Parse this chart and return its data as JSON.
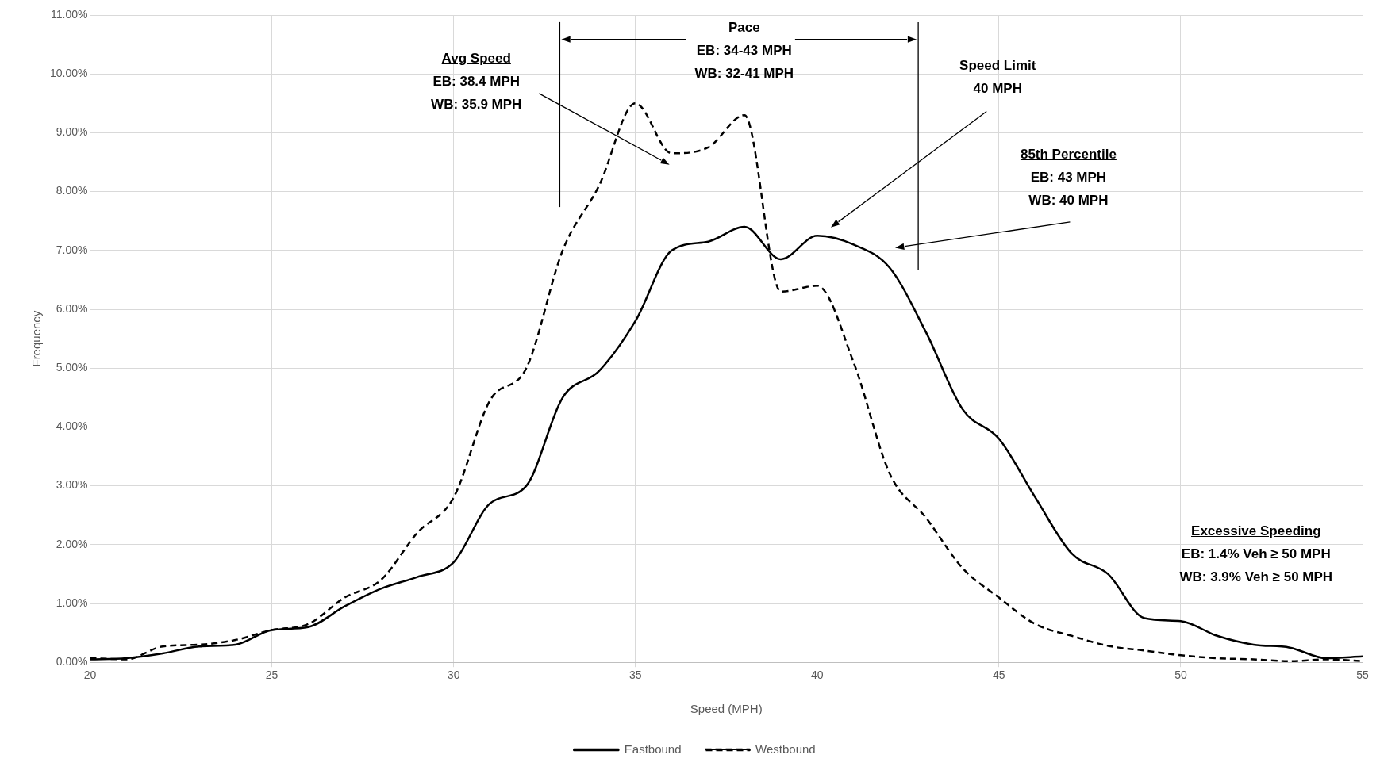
{
  "chart_data": {
    "type": "line",
    "xlabel": "Speed (MPH)",
    "ylabel": "Frequency",
    "x": [
      20,
      21,
      22,
      23,
      24,
      25,
      26,
      27,
      28,
      29,
      30,
      31,
      32,
      33,
      34,
      35,
      36,
      37,
      38,
      39,
      40,
      41,
      42,
      43,
      44,
      45,
      46,
      47,
      48,
      49,
      50,
      51,
      52,
      53,
      54,
      55
    ],
    "series": [
      {
        "name": "Eastbound",
        "color": "#000000",
        "line_style": "solid",
        "values": [
          0.05,
          0.07,
          0.15,
          0.27,
          0.3,
          0.55,
          0.6,
          0.95,
          1.25,
          1.45,
          1.7,
          2.7,
          3.0,
          4.5,
          4.95,
          5.8,
          7.0,
          7.15,
          7.4,
          6.85,
          7.25,
          7.1,
          6.7,
          5.6,
          4.3,
          3.8,
          2.8,
          1.85,
          1.5,
          0.75,
          0.7,
          0.45,
          0.3,
          0.25,
          0.07,
          0.1
        ]
      },
      {
        "name": "Westbound",
        "color": "#000000",
        "line_style": "dashed",
        "values": [
          0.07,
          0.05,
          0.27,
          0.3,
          0.38,
          0.55,
          0.65,
          1.1,
          1.4,
          2.2,
          2.8,
          4.45,
          5.0,
          7.0,
          8.1,
          9.5,
          8.65,
          8.75,
          9.3,
          6.3,
          6.4,
          5.1,
          3.2,
          2.45,
          1.6,
          1.1,
          0.65,
          0.45,
          0.28,
          0.2,
          0.12,
          0.07,
          0.05,
          0.02,
          0.05,
          0.02
        ]
      }
    ],
    "xlim": [
      20,
      55
    ],
    "xticks": [
      20,
      25,
      30,
      35,
      40,
      45,
      50,
      55
    ],
    "ylim": [
      0,
      11
    ],
    "yticks": [
      {
        "value": 0,
        "label": "0.00%"
      },
      {
        "value": 1,
        "label": "1.00%"
      },
      {
        "value": 2,
        "label": "2.00%"
      },
      {
        "value": 3,
        "label": "3.00%"
      },
      {
        "value": 4,
        "label": "4.00%"
      },
      {
        "value": 5,
        "label": "5.00%"
      },
      {
        "value": 6,
        "label": "6.00%"
      },
      {
        "value": 7,
        "label": "7.00%"
      },
      {
        "value": 8,
        "label": "8.00%"
      },
      {
        "value": 9,
        "label": "9.00%"
      },
      {
        "value": 10,
        "label": "10.00%"
      },
      {
        "value": 11,
        "label": "11.00%"
      }
    ],
    "annotations": [
      "Pace\nEB: 34-43 MPH\nWB: 32-41 MPH",
      "Avg Speed\nEB: 38.4 MPH\nWB: 35.9 MPH",
      "Speed Limit\n40 MPH",
      "85th Percentile\nEB: 43 MPH\nWB: 40 MPH",
      "Excessive Speeding\nEB: 1.4% Veh ≥ 50 MPH\nWB: 3.9% Veh ≥ 50 MPH"
    ],
    "grid": true,
    "legend": "bottom"
  }
}
